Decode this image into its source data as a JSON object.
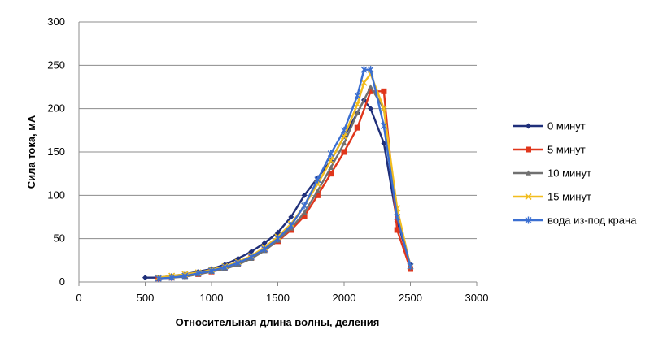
{
  "chart_data": {
    "type": "line",
    "title": "",
    "xlabel": "Относительная длина волны, деления",
    "ylabel": "Сила тока, мА",
    "xlim": [
      0,
      3000
    ],
    "ylim": [
      0,
      300
    ],
    "xticks": [
      "0",
      "500",
      "1000",
      "1500",
      "2000",
      "2500",
      "3000"
    ],
    "yticks": [
      "0",
      "50",
      "100",
      "150",
      "200",
      "250",
      "300"
    ],
    "grid": "horizontal",
    "legend_position": "right",
    "series": [
      {
        "name": "0 минут",
        "color": "#1f2f7a",
        "marker": "diamond",
        "x": [
          500,
          600,
          700,
          800,
          900,
          1000,
          1100,
          1200,
          1300,
          1400,
          1500,
          1600,
          1700,
          1800,
          1900,
          2000,
          2100,
          2150,
          2200,
          2300,
          2400,
          2500
        ],
        "y": [
          5,
          5,
          7,
          9,
          12,
          15,
          20,
          27,
          35,
          45,
          57,
          75,
          100,
          120,
          140,
          168,
          195,
          210,
          200,
          160,
          70,
          20
        ]
      },
      {
        "name": "5 минут",
        "color": "#e0361b",
        "marker": "square",
        "x": [
          600,
          700,
          800,
          900,
          1000,
          1100,
          1200,
          1300,
          1400,
          1500,
          1600,
          1700,
          1800,
          1900,
          2000,
          2100,
          2200,
          2300,
          2400,
          2500
        ],
        "y": [
          4,
          5,
          7,
          9,
          12,
          16,
          21,
          28,
          37,
          47,
          60,
          76,
          100,
          125,
          150,
          178,
          220,
          220,
          60,
          15
        ]
      },
      {
        "name": "10 минут",
        "color": "#707070",
        "marker": "triangle",
        "x": [
          600,
          700,
          800,
          900,
          1000,
          1100,
          1200,
          1300,
          1400,
          1500,
          1600,
          1700,
          1800,
          1900,
          2000,
          2100,
          2200,
          2300,
          2400,
          2500
        ],
        "y": [
          4,
          5,
          6,
          9,
          12,
          15,
          20,
          27,
          36,
          48,
          62,
          80,
          105,
          132,
          160,
          195,
          225,
          200,
          80,
          18
        ]
      },
      {
        "name": "15 минут",
        "color": "#f2bd1e",
        "marker": "x",
        "x": [
          600,
          700,
          800,
          900,
          1000,
          1100,
          1200,
          1300,
          1400,
          1500,
          1600,
          1700,
          1800,
          1900,
          2000,
          2100,
          2150,
          2200,
          2300,
          2400,
          2500
        ],
        "y": [
          5,
          7,
          9,
          11,
          14,
          18,
          23,
          30,
          40,
          52,
          67,
          88,
          113,
          140,
          168,
          205,
          230,
          240,
          200,
          85,
          18
        ]
      },
      {
        "name": "вода из-под крана",
        "color": "#3b6fd1",
        "marker": "asterisk",
        "x": [
          600,
          700,
          800,
          900,
          1000,
          1100,
          1200,
          1300,
          1400,
          1500,
          1600,
          1700,
          1800,
          1900,
          2000,
          2100,
          2150,
          2200,
          2300,
          2400,
          2500
        ],
        "y": [
          4,
          5,
          7,
          10,
          13,
          17,
          22,
          29,
          38,
          50,
          65,
          88,
          118,
          148,
          175,
          215,
          245,
          245,
          180,
          75,
          18
        ]
      }
    ]
  }
}
